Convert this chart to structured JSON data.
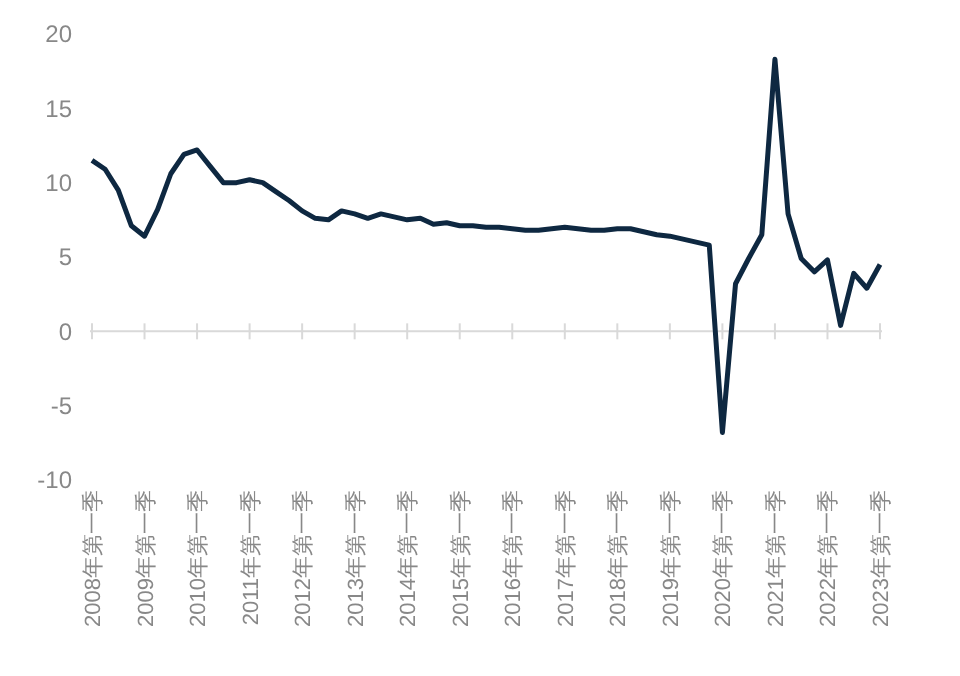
{
  "chart_data": {
    "type": "line",
    "categories": [
      "2008年第一季",
      null,
      null,
      null,
      "2009年第一季",
      null,
      null,
      null,
      "2010年第一季",
      null,
      null,
      null,
      "2011年第一季",
      null,
      null,
      null,
      "2012年第一季",
      null,
      null,
      null,
      "2013年第一季",
      null,
      null,
      null,
      "2014年第一季",
      null,
      null,
      null,
      "2015年第一季",
      null,
      null,
      null,
      "2016年第一季",
      null,
      null,
      null,
      "2017年第一季",
      null,
      null,
      null,
      "2018年第一季",
      null,
      null,
      null,
      "2019年第一季",
      null,
      null,
      null,
      "2020年第一季",
      null,
      null,
      null,
      "2021年第一季",
      null,
      null,
      null,
      "2022年第一季",
      null,
      null,
      null,
      "2023年第一季"
    ],
    "series": [
      {
        "color": "#0e2841",
        "values": [
          11.5,
          10.9,
          9.5,
          7.1,
          6.4,
          8.2,
          10.6,
          11.9,
          12.2,
          11.1,
          10.0,
          10.0,
          10.2,
          10.0,
          9.4,
          8.8,
          8.1,
          7.6,
          7.5,
          8.1,
          7.9,
          7.6,
          7.9,
          7.7,
          7.5,
          7.6,
          7.2,
          7.3,
          7.1,
          7.1,
          7.0,
          7.0,
          6.9,
          6.8,
          6.8,
          6.9,
          7.0,
          6.9,
          6.8,
          6.8,
          6.9,
          6.9,
          6.7,
          6.5,
          6.4,
          6.2,
          6.0,
          5.8,
          -6.8,
          3.2,
          4.9,
          6.5,
          18.3,
          7.9,
          4.9,
          4.0,
          4.8,
          0.4,
          3.9,
          2.9,
          4.5
        ]
      }
    ],
    "ylim": [
      -10,
      20
    ],
    "yticks": [
      -10,
      -5,
      0,
      5,
      10,
      15,
      20
    ],
    "marker": "none",
    "line_style": "solid"
  }
}
